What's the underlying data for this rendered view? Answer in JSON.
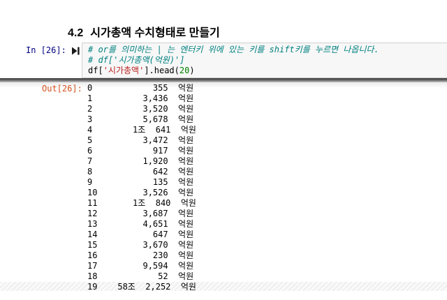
{
  "heading": {
    "number": "4.2",
    "title": "시가총액 수치형태로 만들기"
  },
  "input_cell": {
    "prompt": "In [26]:",
    "run_icon": "step-forward-icon",
    "code_lines": [
      {
        "tokens": [
          {
            "type": "comment",
            "text": "# or를 의미하는 | 는 엔터키 위에 있는 키를 shift키를 누르면 나옵니다."
          }
        ]
      },
      {
        "tokens": [
          {
            "type": "comment",
            "text": "# df['시가총액(억원)']"
          }
        ]
      },
      {
        "tokens": [
          {
            "type": "plain",
            "text": "df["
          },
          {
            "type": "string",
            "text": "'시가총액'"
          },
          {
            "type": "plain",
            "text": "].head("
          },
          {
            "type": "number",
            "text": "20"
          },
          {
            "type": "plain",
            "text": ")"
          }
        ]
      }
    ]
  },
  "output_cell": {
    "prompt": "Out[26]:",
    "index_col_width": 6,
    "value_col_width": 14,
    "rows": [
      {
        "index": "0",
        "value": "355  억원"
      },
      {
        "index": "1",
        "value": "3,436  억원"
      },
      {
        "index": "2",
        "value": "3,520  억원"
      },
      {
        "index": "3",
        "value": "5,678  억원"
      },
      {
        "index": "4",
        "value": "1조  641  억원"
      },
      {
        "index": "5",
        "value": "3,472  억원"
      },
      {
        "index": "6",
        "value": "917  억원"
      },
      {
        "index": "7",
        "value": "1,920  억원"
      },
      {
        "index": "8",
        "value": "642  억원"
      },
      {
        "index": "9",
        "value": "135  억원"
      },
      {
        "index": "10",
        "value": "3,526  억원"
      },
      {
        "index": "11",
        "value": "1조  840  억원"
      },
      {
        "index": "12",
        "value": "3,687  억원"
      },
      {
        "index": "13",
        "value": "4,651  억원"
      },
      {
        "index": "14",
        "value": "647  억원"
      },
      {
        "index": "15",
        "value": "3,670  억원"
      },
      {
        "index": "16",
        "value": "230  억원"
      },
      {
        "index": "17",
        "value": "9,594  억원"
      },
      {
        "index": "18",
        "value": "52  억원"
      },
      {
        "index": "19",
        "value": "58조  2,252  억원"
      }
    ]
  },
  "colors": {
    "in_prompt": "#000080",
    "out_prompt": "#d2521e",
    "comment": "#008080",
    "string": "#ba2121",
    "number": "#008000",
    "code_bg": "#f7f7f7",
    "code_border": "#cfcfcf",
    "divider_dark": "#3f3f3f",
    "divider_light": "#c9c9c9"
  }
}
